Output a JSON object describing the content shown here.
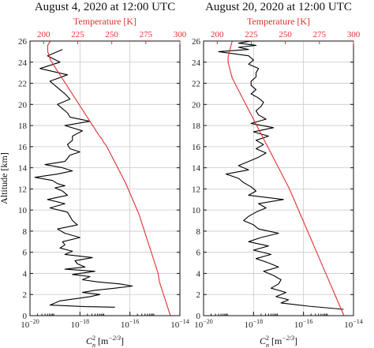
{
  "chart_data": [
    {
      "type": "line",
      "title": "August 4, 2020 at 12:00 UTC",
      "ylabel": "Altitude [km]",
      "ylim": [
        0,
        26
      ],
      "yticks": [
        "0",
        "2",
        "4",
        "6",
        "8",
        "10",
        "12",
        "14",
        "16",
        "18",
        "20",
        "22",
        "24",
        "26"
      ],
      "xlabel_prefix": "C",
      "xlabel_sub": "n",
      "xlabel_sup": "2",
      "xlabel_unit": " [m",
      "xlabel_unit_sup": "−2/3",
      "xlabel_unit_end": "]",
      "xscale": "log",
      "xlim": [
        1e-20,
        1e-14
      ],
      "xticks": [
        {
          "v": -20,
          "base": "10",
          "exp": "−20"
        },
        {
          "v": -18,
          "base": "10",
          "exp": "−18"
        },
        {
          "v": -16,
          "base": "10",
          "exp": "−16"
        },
        {
          "v": -14,
          "base": "10",
          "exp": "−14"
        }
      ],
      "top_axis_label": "Temperature [K]",
      "top_xlim": [
        190,
        300
      ],
      "top_ticks": [
        "200",
        "225",
        "250",
        "275",
        "300"
      ],
      "top_tick_values": [
        200,
        225,
        250,
        275,
        300
      ],
      "grid": true,
      "series": [
        {
          "color": "#000000",
          "x_log10": [
            -16.6,
            -17.8,
            -19.2,
            -18.8,
            -17.6,
            -17.2,
            -17.9,
            -17.4,
            -16.6,
            -15.9,
            -16.4,
            -17.3,
            -17.9,
            -17.6,
            -18.3,
            -17.4,
            -18.6,
            -17.8,
            -18.1,
            -18.2,
            -17.5,
            -18.6,
            -18.3,
            -18.8,
            -18.6,
            -18.7,
            -18.0,
            -18.6,
            -18.9,
            -18.1,
            -18.3,
            -18.4,
            -18.5,
            -19.2,
            -18.6,
            -19.3,
            -18.5,
            -18.7,
            -19.0,
            -18.6,
            -18.9,
            -19.1,
            -19.8,
            -18.9,
            -18.3,
            -18.7,
            -19.4,
            -18.6,
            -18.5,
            -18.4,
            -18.0,
            -18.4,
            -18.5,
            -18.3,
            -18.3,
            -17.9,
            -18.6,
            -17.6,
            -18.4,
            -18.5,
            -18.7,
            -18.9,
            -18.4,
            -18.6,
            -18.9,
            -19.2,
            -18.5,
            -19.6,
            -18.8,
            -19.3,
            -18.7
          ],
          "y": [
            0.8,
            0.85,
            1.0,
            1.4,
            1.8,
            2.0,
            2.2,
            2.4,
            2.6,
            2.8,
            3.0,
            3.2,
            3.4,
            3.7,
            3.9,
            4.2,
            4.4,
            4.6,
            4.9,
            5.2,
            5.5,
            5.8,
            6.1,
            6.4,
            6.7,
            7.0,
            7.4,
            7.8,
            8.2,
            8.6,
            9.0,
            9.4,
            9.8,
            10.2,
            10.6,
            11.0,
            11.4,
            11.8,
            12.1,
            12.3,
            12.5,
            12.8,
            13.1,
            13.4,
            13.7,
            14.0,
            14.3,
            14.6,
            14.9,
            15.2,
            15.5,
            15.8,
            16.2,
            16.6,
            17.0,
            17.5,
            18.0,
            18.4,
            18.8,
            19.2,
            19.6,
            20.0,
            20.5,
            21.0,
            21.6,
            22.2,
            22.8,
            23.4,
            24.0,
            24.6,
            25.2
          ]
        },
        {
          "color": "#e03030",
          "temperature": [
            293,
            291,
            289,
            287,
            285,
            284,
            282,
            280,
            278,
            276,
            274,
            272,
            270,
            268,
            266,
            264,
            262,
            260,
            258,
            256,
            254,
            252,
            250,
            248,
            246,
            244,
            243,
            241,
            239,
            237,
            235,
            233,
            231,
            229,
            227,
            225,
            223,
            221,
            219,
            217,
            215,
            213,
            211,
            209,
            207,
            205,
            204,
            203,
            203,
            203,
            204,
            205,
            207,
            208,
            210,
            211,
            212,
            213,
            213,
            213,
            214,
            215,
            216,
            216
          ],
          "y": [
            0,
            0.8,
            1.6,
            2.4,
            3.2,
            4.0,
            4.8,
            5.6,
            6.4,
            7.2,
            8.0,
            8.8,
            9.6,
            10.2,
            10.8,
            11.4,
            12.0,
            12.6,
            13.1,
            13.6,
            14.1,
            14.6,
            15.1,
            15.6,
            16.1,
            16.4,
            16.7,
            17.0,
            17.4,
            17.8,
            18.2,
            18.6,
            19.0,
            19.4,
            19.8,
            20.2,
            20.6,
            21.0,
            21.4,
            21.8,
            22.2,
            22.6,
            23.0,
            23.4,
            23.8,
            24.2,
            24.6,
            25.0,
            25.4,
            25.6,
            25.8,
            26.0,
            26.0,
            26.0,
            26.0,
            26.0,
            26.0,
            26.0,
            26.0,
            26.0,
            26.0,
            26.0,
            26.0,
            26.0
          ]
        }
      ]
    },
    {
      "type": "line",
      "title": "August 20, 2020 at 12:00 UTC",
      "ylim": [
        0,
        26
      ],
      "yticks": [
        "0",
        "2",
        "4",
        "6",
        "8",
        "10",
        "12",
        "14",
        "16",
        "18",
        "20",
        "22",
        "24",
        "26"
      ],
      "xlabel_prefix": "C",
      "xlabel_sub": "n",
      "xlabel_sup": "2",
      "xlabel_unit": " [m",
      "xlabel_unit_sup": "−2/3",
      "xlabel_unit_end": "]",
      "xscale": "log",
      "xlim": [
        1e-20,
        1e-14
      ],
      "xticks": [
        {
          "v": -20,
          "base": "10",
          "exp": "−20"
        },
        {
          "v": -18,
          "base": "10",
          "exp": "−18"
        },
        {
          "v": -16,
          "base": "10",
          "exp": "−16"
        },
        {
          "v": -14,
          "base": "10",
          "exp": "−14"
        }
      ],
      "top_axis_label": "Temperature [K]",
      "top_xlim": [
        190,
        300
      ],
      "top_ticks": [
        "200",
        "225",
        "250",
        "275",
        "300"
      ],
      "top_tick_values": [
        200,
        225,
        250,
        275,
        300
      ],
      "grid": true,
      "series": [
        {
          "color": "#000000",
          "x_log10": [
            -14.4,
            -15.8,
            -16.9,
            -16.6,
            -17.1,
            -16.7,
            -17.3,
            -17.0,
            -16.9,
            -17.2,
            -17.6,
            -17.0,
            -17.4,
            -17.9,
            -17.3,
            -18.0,
            -17.4,
            -18.2,
            -17.7,
            -17.0,
            -17.8,
            -18.0,
            -18.4,
            -18.2,
            -17.9,
            -17.5,
            -17.8,
            -16.8,
            -18.2,
            -17.9,
            -18.1,
            -18.4,
            -18.6,
            -19.1,
            -18.2,
            -18.6,
            -18.2,
            -17.8,
            -17.5,
            -17.9,
            -17.6,
            -17.9,
            -17.4,
            -18.0,
            -17.2,
            -18.1,
            -17.5,
            -17.8,
            -17.9,
            -17.7,
            -17.6,
            -17.8,
            -18.1,
            -17.9,
            -18.1,
            -18.1,
            -17.9,
            -17.9,
            -17.8,
            -18.2,
            -18.0,
            -18.2,
            -19.4,
            -18.2,
            -18.6,
            -17.9,
            -18.6,
            -18.1,
            -18.5,
            -18.0,
            -18.2,
            -18.0
          ],
          "y": [
            0.6,
            0.9,
            1.2,
            1.5,
            1.8,
            2.2,
            2.6,
            3.0,
            3.4,
            3.8,
            4.2,
            4.6,
            5.0,
            5.4,
            5.8,
            6.2,
            6.6,
            7.0,
            7.4,
            7.8,
            8.2,
            8.6,
            9.0,
            9.4,
            9.8,
            10.2,
            10.6,
            11.0,
            11.4,
            11.8,
            12.2,
            12.6,
            13.0,
            13.4,
            13.8,
            14.2,
            14.6,
            15.0,
            15.4,
            15.8,
            16.2,
            16.6,
            17.0,
            17.4,
            17.8,
            18.2,
            18.6,
            19.0,
            19.4,
            19.8,
            20.2,
            20.6,
            21.0,
            21.4,
            21.8,
            22.2,
            22.6,
            23.0,
            23.4,
            23.8,
            24.2,
            24.6,
            25.0,
            25.2,
            25.4,
            25.6,
            25.8,
            26.0,
            26.0,
            26.0,
            26.0,
            26.0
          ]
        },
        {
          "color": "#e03030",
          "temperature": [
            293,
            291,
            289,
            287,
            285,
            283,
            281,
            279,
            277,
            275,
            273,
            271,
            269,
            267,
            265,
            263,
            261,
            259,
            257,
            255,
            253,
            251,
            249,
            247,
            245,
            243,
            241,
            239,
            237,
            235,
            233,
            231,
            229,
            227,
            225,
            223,
            221,
            219,
            217,
            215,
            213,
            211,
            210,
            209,
            208,
            208,
            209,
            210,
            211,
            212,
            213,
            214,
            215,
            216,
            217,
            218,
            219,
            219,
            219,
            219,
            219,
            219,
            219,
            219
          ],
          "y": [
            0,
            0.6,
            1.2,
            1.8,
            2.4,
            3.0,
            3.6,
            4.2,
            4.8,
            5.4,
            6.0,
            6.6,
            7.2,
            7.8,
            8.4,
            9.0,
            9.6,
            10.2,
            10.8,
            11.4,
            12.0,
            12.5,
            13.0,
            13.5,
            14.0,
            14.5,
            15.0,
            15.5,
            16.0,
            16.5,
            17.0,
            17.5,
            18.0,
            18.5,
            19.0,
            19.5,
            20.0,
            20.5,
            21.0,
            21.5,
            22.0,
            22.5,
            23.0,
            23.5,
            24.0,
            24.5,
            25.0,
            25.5,
            26.0,
            26.0,
            26.0,
            26.0,
            26.0,
            26.0,
            26.0,
            26.0,
            26.0,
            26.0,
            26.0,
            26.0,
            26.0,
            26.0,
            26.0,
            26.0
          ]
        }
      ]
    }
  ]
}
